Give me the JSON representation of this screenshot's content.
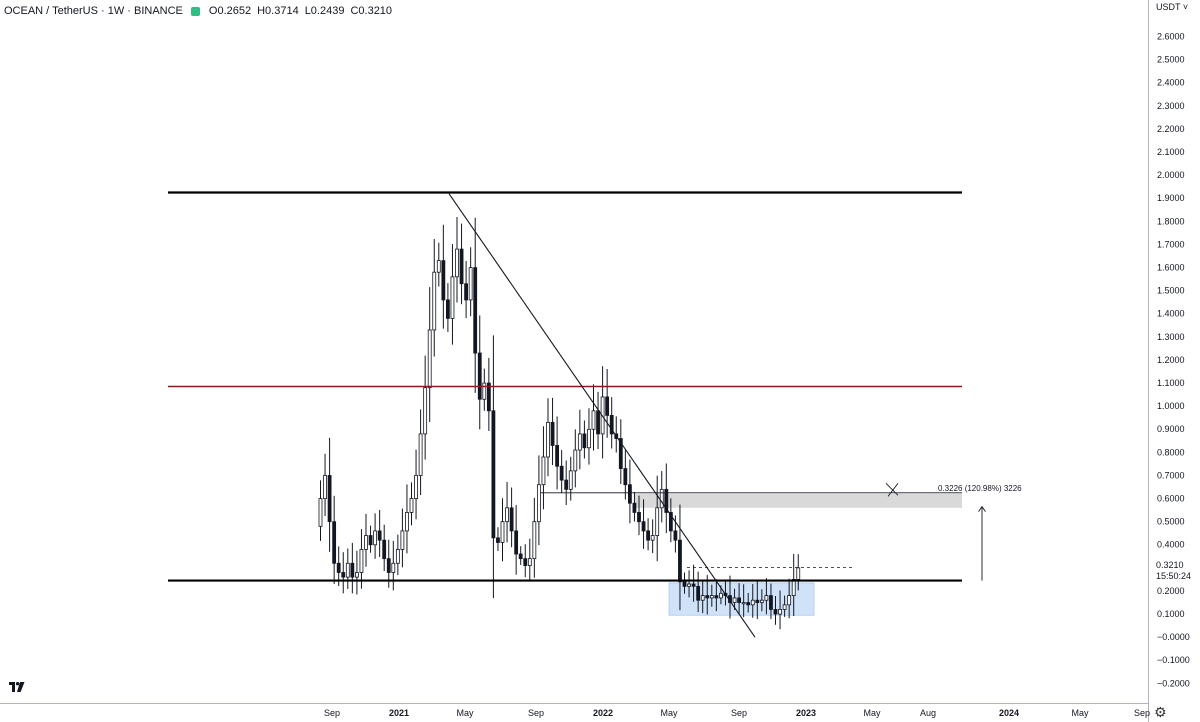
{
  "header": {
    "symbol": "OCEAN / TetherUS · 1W · BINANCE",
    "open": "O0.2652",
    "high": "H0.3714",
    "low": "L0.2439",
    "close": "C0.3210",
    "status_color": "#2ebd85"
  },
  "price_axis": {
    "currency": "USDT",
    "ticks": [
      "2.6000",
      "2.5000",
      "2.4000",
      "2.3000",
      "2.2000",
      "2.1000",
      "2.0000",
      "1.9000",
      "1.8000",
      "1.7000",
      "1.6000",
      "1.5000",
      "1.4000",
      "1.3000",
      "1.2000",
      "1.1000",
      "1.0000",
      "0.9000",
      "0.8000",
      "0.7000",
      "0.6000",
      "0.5000",
      "0.4000",
      "0.3000",
      "0.2000",
      "0.1000",
      "−0.0000",
      "−0.1000",
      "−0.2000"
    ],
    "last_price": "0.3210",
    "countdown": "15:50:24"
  },
  "time_axis": {
    "labels": [
      "Sep",
      "2021",
      "May",
      "Sep",
      "2022",
      "May",
      "Sep",
      "2023",
      "May",
      "Aug",
      "2024",
      "May",
      "Sep"
    ],
    "bold": [
      "2021",
      "2022",
      "2023",
      "2024"
    ]
  },
  "measure_label": "0.3226 (120.98%) 3226",
  "icons": {
    "settings": "gear-icon",
    "logo": "tradingview-logo",
    "dropdown": "chevron-down-icon"
  },
  "chart_data": {
    "type": "candlestick",
    "timeframe": "1W",
    "symbol": "OCEAN/USDT",
    "ylim": [
      -0.22,
      2.66
    ],
    "closes": [
      0.62,
      0.72,
      0.52,
      0.34,
      0.3,
      0.28,
      0.34,
      0.28,
      0.3,
      0.4,
      0.46,
      0.42,
      0.48,
      0.44,
      0.36,
      0.3,
      0.34,
      0.4,
      0.48,
      0.56,
      0.62,
      0.72,
      0.9,
      1.1,
      1.35,
      1.6,
      1.65,
      1.48,
      1.4,
      1.58,
      1.7,
      1.55,
      1.48,
      1.62,
      1.25,
      1.05,
      1.12,
      1.0,
      0.45,
      0.43,
      0.52,
      0.58,
      0.48,
      0.38,
      0.36,
      0.33,
      0.36,
      0.52,
      0.68,
      0.8,
      0.95,
      0.85,
      0.76,
      0.7,
      0.66,
      0.74,
      0.83,
      0.9,
      0.84,
      0.92,
      1.0,
      0.9,
      1.06,
      0.98,
      0.9,
      0.88,
      0.75,
      0.68,
      0.6,
      0.56,
      0.52,
      0.48,
      0.44,
      0.46,
      0.58,
      0.66,
      0.56,
      0.48,
      0.44,
      0.26,
      0.24,
      0.25,
      0.24,
      0.18,
      0.2,
      0.19,
      0.2,
      0.19,
      0.21,
      0.2,
      0.17,
      0.19,
      0.17,
      0.17,
      0.16,
      0.18,
      0.17,
      0.18,
      0.2,
      0.14,
      0.12,
      0.14,
      0.16,
      0.2,
      0.27,
      0.32
    ],
    "levels": [
      {
        "price": 1.945,
        "color": "#000000"
      },
      {
        "price": 1.105,
        "color": "#8b1a1a"
      },
      {
        "price": 0.265,
        "color": "#000000"
      }
    ],
    "trendline": {
      "from": [
        "2021-04",
        1.94
      ],
      "to": [
        "2022-10",
        0.02
      ]
    },
    "zones": [
      {
        "type": "supply",
        "top": 0.64,
        "bottom": 0.58,
        "color": "#d9d9d9"
      },
      {
        "type": "accumulation",
        "top": 0.255,
        "bottom": 0.115,
        "color": "#cfe2f8"
      }
    ],
    "target_price": 0.65
  }
}
